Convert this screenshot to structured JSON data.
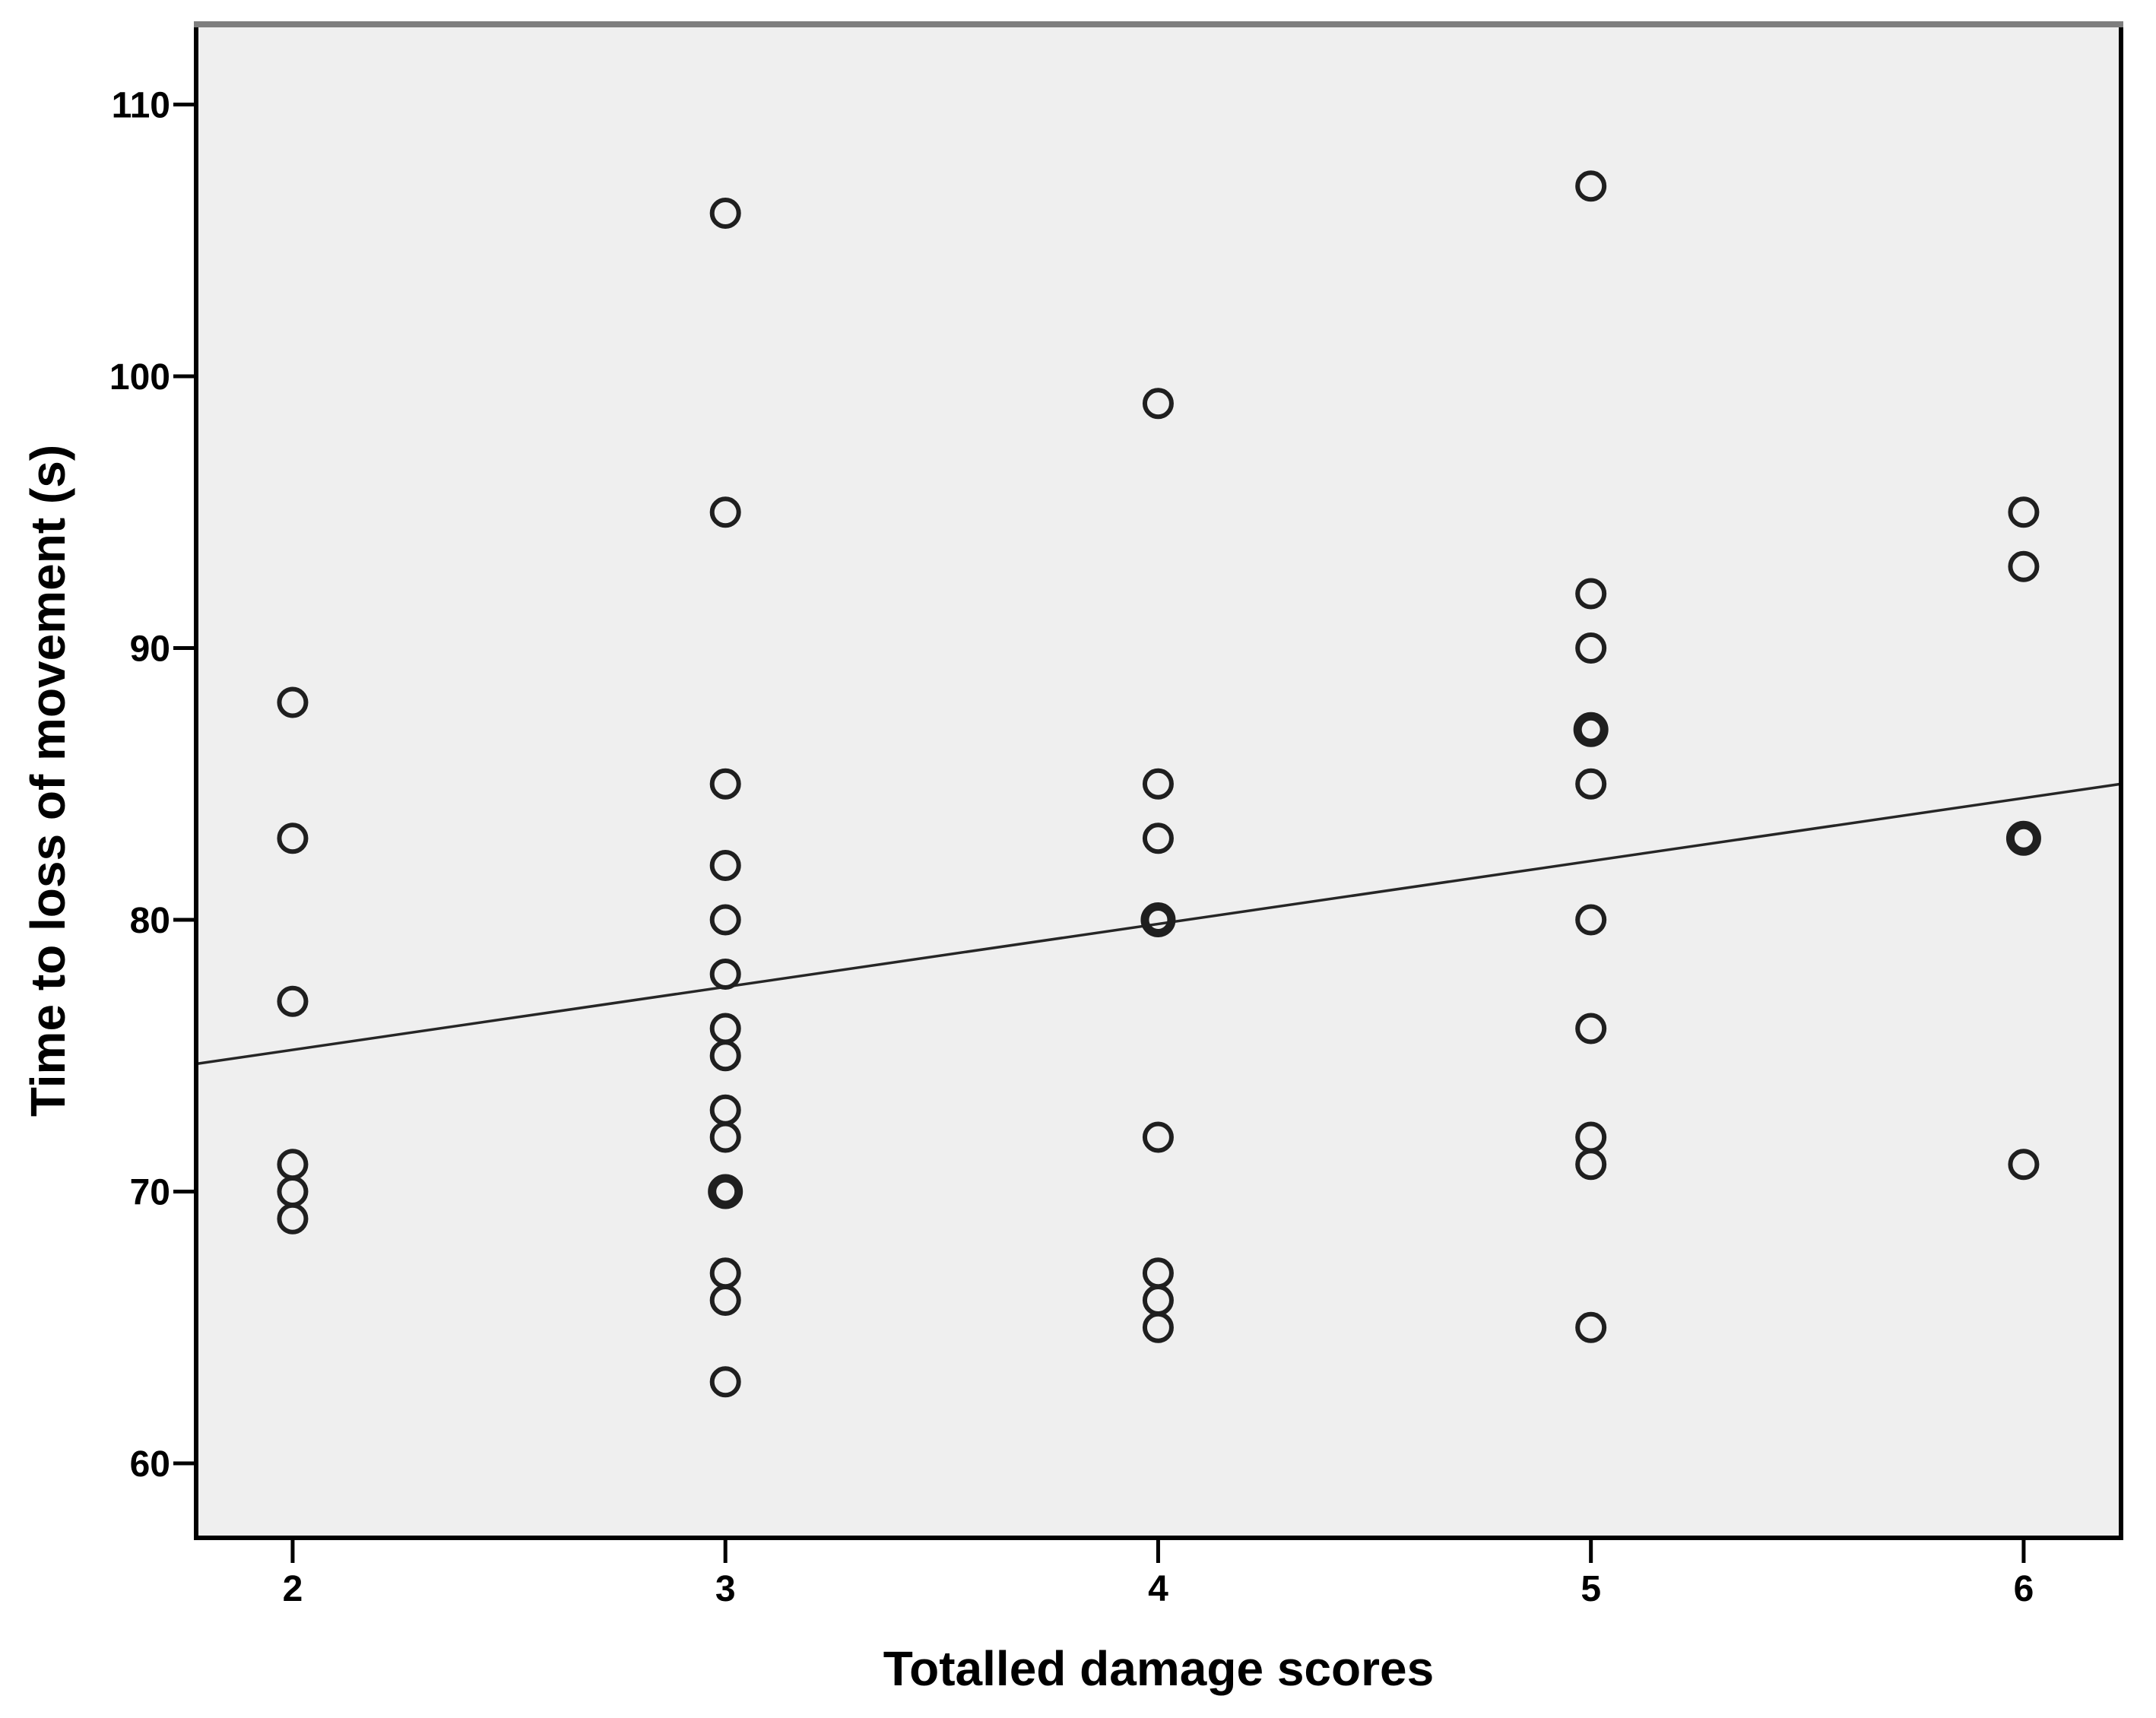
{
  "chart_data": {
    "type": "scatter",
    "title": "",
    "xlabel": "Totalled damage scores",
    "ylabel": "Time to loss of movement (s)",
    "x_ticks": [
      2,
      3,
      4,
      5,
      6
    ],
    "y_ticks": [
      60,
      70,
      80,
      90,
      100,
      110
    ],
    "x_domain": [
      1.777,
      6.225
    ],
    "y_domain": [
      57.26,
      112.95
    ],
    "grid": false,
    "legend": false,
    "marker_shape": "open-circle",
    "points": [
      {
        "x": 2,
        "y": 88
      },
      {
        "x": 2,
        "y": 83
      },
      {
        "x": 2,
        "y": 77
      },
      {
        "x": 2,
        "y": 71
      },
      {
        "x": 2,
        "y": 70
      },
      {
        "x": 2,
        "y": 69
      },
      {
        "x": 3,
        "y": 106
      },
      {
        "x": 3,
        "y": 95
      },
      {
        "x": 3,
        "y": 85
      },
      {
        "x": 3,
        "y": 82
      },
      {
        "x": 3,
        "y": 80
      },
      {
        "x": 3,
        "y": 78
      },
      {
        "x": 3,
        "y": 76
      },
      {
        "x": 3,
        "y": 75
      },
      {
        "x": 3,
        "y": 73
      },
      {
        "x": 3,
        "y": 72
      },
      {
        "x": 3,
        "y": 70,
        "n": 2
      },
      {
        "x": 3,
        "y": 67
      },
      {
        "x": 3,
        "y": 66
      },
      {
        "x": 3,
        "y": 63
      },
      {
        "x": 4,
        "y": 99
      },
      {
        "x": 4,
        "y": 85
      },
      {
        "x": 4,
        "y": 83
      },
      {
        "x": 4,
        "y": 80,
        "n": 2
      },
      {
        "x": 4,
        "y": 72
      },
      {
        "x": 4,
        "y": 67
      },
      {
        "x": 4,
        "y": 66
      },
      {
        "x": 4,
        "y": 65
      },
      {
        "x": 5,
        "y": 107
      },
      {
        "x": 5,
        "y": 92
      },
      {
        "x": 5,
        "y": 90
      },
      {
        "x": 5,
        "y": 87,
        "n": 2
      },
      {
        "x": 5,
        "y": 85
      },
      {
        "x": 5,
        "y": 80
      },
      {
        "x": 5,
        "y": 76
      },
      {
        "x": 5,
        "y": 72
      },
      {
        "x": 5,
        "y": 71
      },
      {
        "x": 5,
        "y": 65
      },
      {
        "x": 6,
        "y": 95
      },
      {
        "x": 6,
        "y": 93
      },
      {
        "x": 6,
        "y": 83,
        "n": 2
      },
      {
        "x": 6,
        "y": 71
      }
    ],
    "fit_line": {
      "x1": 1.777,
      "y1": 74.7,
      "x2": 6.225,
      "y2": 85.0
    },
    "colors": {
      "plot_bg": "#efefef",
      "marker_stroke": "#1f1f1f",
      "fit_line": "#262626",
      "border": "#000000",
      "border_top": "#7e7e7e",
      "tick": "#000000",
      "text": "#000000"
    }
  }
}
